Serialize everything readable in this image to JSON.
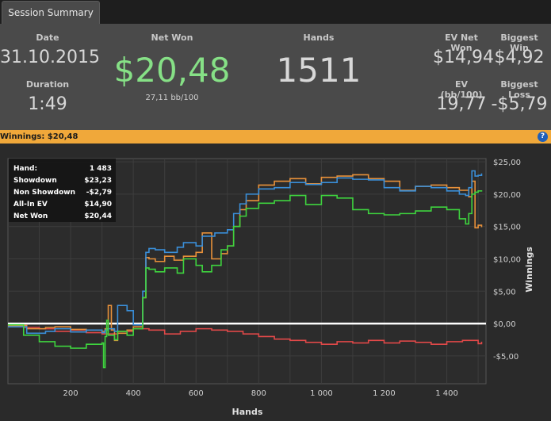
{
  "tab": {
    "label": "Session Summary"
  },
  "summary": {
    "date_label": "Date",
    "date": "31.10.2015",
    "duration_label": "Duration",
    "duration": "1:49",
    "net_won_label": "Net Won",
    "net_won": "$20,48",
    "net_won_bb": "27,11 bb/100",
    "hands_label": "Hands",
    "hands": "1511",
    "ev_net_won_label": "EV Net Won",
    "ev_net_won": "$14,94",
    "biggest_win_label": "Biggest Win",
    "biggest_win": "$4,92",
    "ev_bb_label": "EV (bb/100)",
    "ev_bb": "19,77",
    "biggest_loss_label": "Biggest Loss",
    "biggest_loss": "-$5,79"
  },
  "banner": {
    "label": "Winnings:",
    "value": "$20,48",
    "help_icon": "?"
  },
  "tooltip": {
    "rows": [
      {
        "label": "Hand:",
        "value": "1 483"
      },
      {
        "label": "Showdown",
        "value": "$23,23"
      },
      {
        "label": "Non Showdown",
        "value": "-$2,79"
      },
      {
        "label": "All-In EV",
        "value": "$14,90"
      },
      {
        "label": "Net Won",
        "value": "$20,44"
      }
    ]
  },
  "colors": {
    "showdown": "#3a8fd9",
    "non_showdown": "#e04848",
    "all_in_ev": "#e8913a",
    "net_won": "#3ed43e",
    "accent": "#f0a83a"
  },
  "chart_data": {
    "type": "line",
    "xlabel": "Hands",
    "ylabel": "Winnings",
    "xlim": [
      0,
      1525
    ],
    "ylim": [
      -9.3,
      25.5
    ],
    "x_ticks": [
      200,
      400,
      600,
      800,
      1000,
      1200,
      1400
    ],
    "x_tick_labels": [
      "200",
      "400",
      "600",
      "800",
      "1 000",
      "1 200",
      "1 400"
    ],
    "y_ticks": [
      -5,
      0,
      5,
      10,
      15,
      20,
      25
    ],
    "y_tick_labels": [
      "-$5,00",
      "$0,00",
      "$5,00",
      "$10,00",
      "$15,00",
      "$20,00",
      "$25,00"
    ],
    "grid": true,
    "series": [
      {
        "name": "Showdown",
        "color": "#3a8fd9",
        "x": [
          0,
          60,
          120,
          150,
          200,
          250,
          300,
          310,
          320,
          340,
          350,
          380,
          400,
          430,
          440,
          450,
          470,
          500,
          540,
          560,
          600,
          620,
          660,
          700,
          720,
          740,
          760,
          800,
          850,
          900,
          950,
          1000,
          1050,
          1100,
          1150,
          1200,
          1250,
          1300,
          1350,
          1400,
          1440,
          1460,
          1470,
          1480,
          1490,
          1500,
          1511
        ],
        "y": [
          -0.5,
          -1.5,
          -1.2,
          -0.8,
          -1.3,
          -1.0,
          -1.4,
          -1.0,
          -0.8,
          -1.2,
          2.8,
          2.0,
          -0.2,
          5.0,
          11.0,
          11.6,
          11.4,
          11.0,
          11.8,
          12.5,
          12.0,
          13.5,
          14.0,
          14.5,
          17.0,
          18.5,
          20.0,
          20.8,
          21.0,
          21.8,
          21.5,
          21.8,
          22.5,
          22.3,
          22.2,
          21.0,
          20.5,
          21.2,
          21.0,
          20.5,
          20.0,
          19.8,
          21.0,
          23.6,
          22.8,
          22.9,
          23.2
        ]
      },
      {
        "name": "Non Showdown",
        "color": "#e04848",
        "x": [
          0,
          50,
          100,
          150,
          200,
          250,
          300,
          350,
          400,
          450,
          500,
          550,
          600,
          650,
          700,
          750,
          800,
          850,
          900,
          950,
          1000,
          1050,
          1100,
          1150,
          1200,
          1250,
          1300,
          1350,
          1400,
          1450,
          1500,
          1511
        ],
        "y": [
          -0.3,
          -0.6,
          -0.8,
          -1.2,
          -1.0,
          -1.4,
          -1.6,
          -1.2,
          -0.8,
          -1.0,
          -1.6,
          -1.2,
          -0.8,
          -1.0,
          -1.2,
          -1.6,
          -2.0,
          -2.4,
          -2.6,
          -2.9,
          -3.2,
          -2.8,
          -3.0,
          -2.6,
          -3.0,
          -2.7,
          -2.9,
          -3.2,
          -2.8,
          -2.6,
          -3.1,
          -2.8
        ]
      },
      {
        "name": "All-In EV",
        "color": "#e8913a",
        "x": [
          0,
          60,
          120,
          150,
          200,
          250,
          300,
          310,
          320,
          330,
          340,
          350,
          380,
          400,
          430,
          440,
          450,
          470,
          500,
          530,
          560,
          600,
          620,
          650,
          680,
          700,
          720,
          740,
          760,
          800,
          850,
          900,
          950,
          1000,
          1050,
          1100,
          1150,
          1200,
          1250,
          1300,
          1350,
          1400,
          1440,
          1470,
          1480,
          1490,
          1500,
          1511
        ],
        "y": [
          -0.3,
          -0.8,
          -0.6,
          -0.5,
          -0.9,
          -1.0,
          -1.2,
          -0.8,
          2.8,
          -1.0,
          -2.6,
          -1.5,
          -1.0,
          -0.5,
          4.0,
          10.2,
          10.0,
          9.6,
          10.4,
          9.8,
          10.4,
          11.0,
          14.0,
          10.0,
          10.8,
          12.0,
          15.0,
          17.6,
          19.0,
          21.4,
          22.0,
          22.4,
          21.6,
          22.6,
          22.8,
          23.0,
          22.4,
          22.0,
          20.6,
          21.2,
          21.4,
          21.0,
          20.6,
          19.6,
          22.0,
          14.8,
          15.2,
          14.9
        ]
      },
      {
        "name": "Net Won",
        "color": "#3ed43e",
        "x": [
          0,
          50,
          100,
          150,
          200,
          250,
          300,
          305,
          310,
          315,
          320,
          340,
          350,
          380,
          400,
          430,
          440,
          450,
          470,
          500,
          540,
          560,
          600,
          620,
          650,
          680,
          700,
          720,
          740,
          760,
          800,
          850,
          900,
          950,
          1000,
          1050,
          1100,
          1150,
          1200,
          1250,
          1300,
          1350,
          1400,
          1440,
          1460,
          1470,
          1480,
          1490,
          1500,
          1511
        ],
        "y": [
          -0.2,
          -1.8,
          -2.8,
          -3.5,
          -3.8,
          -3.2,
          -3.0,
          -6.8,
          -2.0,
          0.5,
          -1.8,
          -2.5,
          -1.2,
          -1.8,
          -0.8,
          4.0,
          8.6,
          8.4,
          8.0,
          8.6,
          7.8,
          10.0,
          9.0,
          8.0,
          9.0,
          11.4,
          12.0,
          15.0,
          16.6,
          17.8,
          18.6,
          19.0,
          19.8,
          18.4,
          19.8,
          19.4,
          17.6,
          17.0,
          16.8,
          17.0,
          17.4,
          18.0,
          17.6,
          16.2,
          15.4,
          17.0,
          20.0,
          20.3,
          20.5,
          20.4
        ]
      }
    ]
  }
}
